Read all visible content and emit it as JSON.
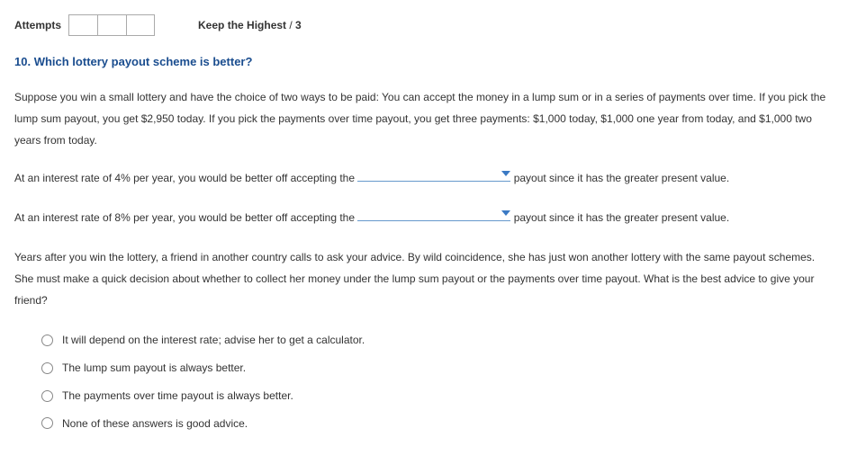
{
  "header": {
    "attempts_label": "Attempts",
    "attempt_count": 3,
    "keep_label": "Keep the Highest",
    "keep_total": "3"
  },
  "question": {
    "number": "10.",
    "title": "Which lottery payout scheme is better?"
  },
  "intro": "Suppose you win a small lottery and have the choice of two ways to be paid: You can accept the money in a lump sum or in a series of payments over time. If you pick the lump sum payout, you get $2,950 today. If you pick the payments over time payout, you get three payments: $1,000 today, $1,000 one year from today, and $1,000 two years from today.",
  "fill1": {
    "pre": "At an interest rate of 4% per year, you would be better off accepting the ",
    "post": " payout since it has the greater present value."
  },
  "fill2": {
    "pre": "At an interest rate of 8% per year, you would be better off accepting the ",
    "post": " payout since it has the greater present value."
  },
  "friend_para": "Years after you win the lottery, a friend in another country calls to ask your advice. By wild coincidence, she has just won another lottery with the same payout schemes. She must make a quick decision about whether to collect her money under the lump sum payout or the payments over time payout. What is the best advice to give your friend?",
  "options": [
    "It will depend on the interest rate; advise her to get a calculator.",
    "The lump sum payout is always better.",
    "The payments over time payout is always better.",
    "None of these answers is good advice."
  ]
}
